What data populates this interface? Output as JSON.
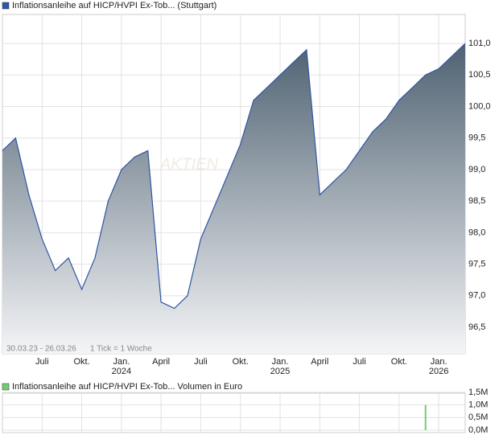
{
  "chart_data": [
    {
      "type": "area",
      "title": "Inflationsanleihe auf HICP/HVPI Ex-Tob... (Stuttgart)",
      "footer": "30.03.23 - 26.03.26",
      "tick_note": "1 Tick = 1 Woche",
      "watermark": "AKTIEN",
      "x": [
        "2023-04",
        "2023-05",
        "2023-06",
        "2023-07",
        "2023-08",
        "2023-09",
        "2023-10",
        "2023-11",
        "2023-12",
        "2024-01",
        "2024-02",
        "2024-03",
        "2024-04",
        "2024-05",
        "2024-06",
        "2024-07",
        "2024-08",
        "2024-09",
        "2024-10",
        "2024-11",
        "2024-12",
        "2025-01",
        "2025-02",
        "2025-03",
        "2025-04",
        "2025-05",
        "2025-06",
        "2025-07",
        "2025-08",
        "2025-09",
        "2025-10",
        "2025-11",
        "2025-12",
        "2026-01",
        "2026-02",
        "2026-03"
      ],
      "series": [
        {
          "name": "Inflationsanleihe auf HICP/HVPI Ex-Tob... (Stuttgart)",
          "color": "#2f55a4",
          "values": [
            99.3,
            99.5,
            98.6,
            97.9,
            97.4,
            97.6,
            97.1,
            97.6,
            98.5,
            99.0,
            99.2,
            99.3,
            96.9,
            96.8,
            97.0,
            97.9,
            98.4,
            98.9,
            99.4,
            100.1,
            100.3,
            100.5,
            100.7,
            100.9,
            98.6,
            98.8,
            99.0,
            99.3,
            99.6,
            99.8,
            100.1,
            100.3,
            100.5,
            100.6,
            100.8,
            101.0
          ]
        }
      ],
      "ylim": [
        96.08,
        101.46
      ],
      "yticks": [
        {
          "value": 96.5,
          "label": "96,5"
        },
        {
          "value": 97,
          "label": "97,0"
        },
        {
          "value": 97.5,
          "label": "97,5"
        },
        {
          "value": 98,
          "label": "98,0"
        },
        {
          "value": 98.5,
          "label": "98,5"
        },
        {
          "value": 99,
          "label": "99,0"
        },
        {
          "value": 99.5,
          "label": "99,5"
        },
        {
          "value": 100,
          "label": "100,0"
        },
        {
          "value": 100.5,
          "label": "100,5"
        },
        {
          "value": 101,
          "label": "101,0"
        }
      ],
      "xticks": [
        {
          "value": "2023-07",
          "label": "Juli"
        },
        {
          "value": "2023-10",
          "label": "Okt."
        },
        {
          "value": "2024-01",
          "label": "Jan."
        },
        {
          "value": "2024-04",
          "label": "April"
        },
        {
          "value": "2024-07",
          "label": "Juli"
        },
        {
          "value": "2024-10",
          "label": "Okt."
        },
        {
          "value": "2025-01",
          "label": "Jan."
        },
        {
          "value": "2025-04",
          "label": "April"
        },
        {
          "value": "2025-07",
          "label": "Juli"
        },
        {
          "value": "2025-10",
          "label": "Okt."
        },
        {
          "value": "2026-01",
          "label": "Jan."
        }
      ],
      "year_labels": [
        {
          "value": "2024-01",
          "label": "2024"
        },
        {
          "value": "2025-01",
          "label": "2025"
        },
        {
          "value": "2026-01",
          "label": "2026"
        }
      ],
      "grid": true
    },
    {
      "type": "bar",
      "title": "Inflationsanleihe auf HICP/HVPI Ex-Tob... Volumen in Euro",
      "x": [
        "2025-12"
      ],
      "series": [
        {
          "name": "Volumen in Euro",
          "color": "#6fcf6f",
          "values": [
            1000000
          ]
        }
      ],
      "ylim": [
        0,
        1600000
      ],
      "yticks": [
        {
          "value": 0,
          "label": "0,0M"
        },
        {
          "value": 500000,
          "label": "0,5M"
        },
        {
          "value": 1000000,
          "label": "1,0M"
        },
        {
          "value": 1500000,
          "label": "1,5M"
        }
      ],
      "grid": true
    }
  ]
}
